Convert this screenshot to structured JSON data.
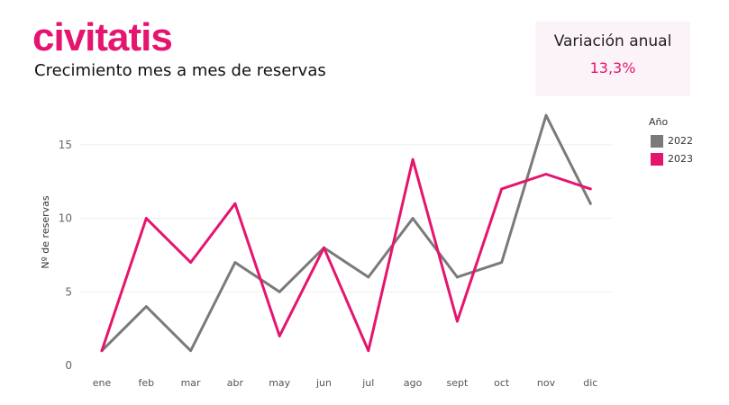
{
  "brand": {
    "logo_text": "civitatis"
  },
  "header": {
    "subtitle": "Crecimiento mes a mes de reservas"
  },
  "kpi": {
    "label": "Variación anual",
    "value": "13,3%"
  },
  "colors": {
    "accent": "#e5156f",
    "series_2022": "#7a7a7a",
    "series_2023": "#e5156f",
    "grid": "#efefef"
  },
  "chart_data": {
    "type": "line",
    "title": "",
    "xlabel": "",
    "ylabel": "Nº de reservas",
    "categories": [
      "ene",
      "feb",
      "mar",
      "abr",
      "may",
      "jun",
      "jul",
      "ago",
      "sept",
      "oct",
      "nov",
      "dic"
    ],
    "ylim": [
      0,
      17.5
    ],
    "yticks": [
      0,
      5,
      10,
      15
    ],
    "grid": true,
    "legend": {
      "title": "Año",
      "position": "right"
    },
    "series": [
      {
        "name": "2022",
        "color": "#7a7a7a",
        "values": [
          1,
          4,
          1,
          7,
          5,
          8,
          6,
          10,
          6,
          7,
          17,
          11
        ]
      },
      {
        "name": "2023",
        "color": "#e5156f",
        "values": [
          1,
          10,
          7,
          11,
          2,
          8,
          1,
          14,
          3,
          12,
          13,
          12
        ]
      }
    ]
  }
}
